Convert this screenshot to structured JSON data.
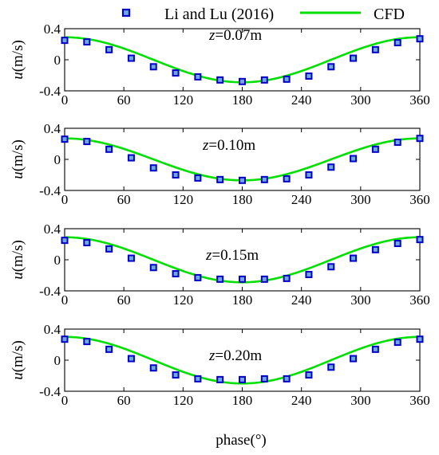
{
  "legend": {
    "markers_label": "Li and Lu (2016)",
    "line_label": "CFD",
    "marker_color": "#0000c8",
    "marker_fill": "#6ea8dc",
    "line_color": "#00e000"
  },
  "xaxis_label": "phase(°)",
  "chart_data": [
    {
      "type": "line",
      "annotation_var": "z",
      "annotation_value": "=0.07m",
      "ylabel_var": "u",
      "ylabel_unit": "(m/s)",
      "xlim": [
        0,
        360
      ],
      "ylim": [
        -0.4,
        0.4
      ],
      "xticks": [
        0,
        60,
        120,
        180,
        240,
        300,
        360
      ],
      "yticks": [
        0.4,
        0,
        -0.4
      ],
      "ytick_labels": [
        "0.4",
        "0",
        "-0.4"
      ],
      "series": [
        {
          "name": "Li and Lu (2016)",
          "style": "markers",
          "x": [
            0,
            22.5,
            45,
            67.5,
            90,
            112.5,
            135,
            157.5,
            180,
            202.5,
            225,
            247.5,
            270,
            292.5,
            315,
            337.5,
            360
          ],
          "y": [
            0.25,
            0.23,
            0.13,
            0.02,
            -0.09,
            -0.17,
            -0.22,
            -0.26,
            -0.28,
            -0.26,
            -0.25,
            -0.21,
            -0.09,
            0.02,
            0.13,
            0.22,
            0.27
          ]
        },
        {
          "name": "CFD",
          "style": "line",
          "amplitude": 0.29
        }
      ]
    },
    {
      "type": "line",
      "annotation_var": "z",
      "annotation_value": "=0.10m",
      "ylabel_var": "u",
      "ylabel_unit": "(m/s)",
      "xlim": [
        0,
        360
      ],
      "ylim": [
        -0.4,
        0.4
      ],
      "xticks": [
        0,
        60,
        120,
        180,
        240,
        300,
        360
      ],
      "yticks": [
        0.4,
        0,
        -0.4
      ],
      "ytick_labels": [
        "0.4",
        "0",
        "-0.4"
      ],
      "series": [
        {
          "name": "Li and Lu (2016)",
          "style": "markers",
          "x": [
            0,
            22.5,
            45,
            67.5,
            90,
            112.5,
            135,
            157.5,
            180,
            202.5,
            225,
            247.5,
            270,
            292.5,
            315,
            337.5,
            360
          ],
          "y": [
            0.26,
            0.23,
            0.13,
            0.02,
            -0.11,
            -0.2,
            -0.24,
            -0.26,
            -0.27,
            -0.26,
            -0.25,
            -0.2,
            -0.1,
            0.01,
            0.13,
            0.22,
            0.27
          ]
        },
        {
          "name": "CFD",
          "style": "line",
          "amplitude": 0.27
        }
      ]
    },
    {
      "type": "line",
      "annotation_var": "z",
      "annotation_value": "=0.15m",
      "ylabel_var": "u",
      "ylabel_unit": "(m/s)",
      "xlim": [
        0,
        360
      ],
      "ylim": [
        -0.4,
        0.4
      ],
      "xticks": [
        0,
        60,
        120,
        180,
        240,
        300,
        360
      ],
      "yticks": [
        0.4,
        0,
        -0.4
      ],
      "ytick_labels": [
        "0.4",
        "0",
        "-0.4"
      ],
      "series": [
        {
          "name": "Li and Lu (2016)",
          "style": "markers",
          "x": [
            0,
            22.5,
            45,
            67.5,
            90,
            112.5,
            135,
            157.5,
            180,
            202.5,
            225,
            247.5,
            270,
            292.5,
            315,
            337.5,
            360
          ],
          "y": [
            0.25,
            0.22,
            0.14,
            0.02,
            -0.1,
            -0.18,
            -0.23,
            -0.25,
            -0.25,
            -0.25,
            -0.24,
            -0.19,
            -0.09,
            0.02,
            0.13,
            0.21,
            0.26
          ]
        },
        {
          "name": "CFD",
          "style": "line",
          "amplitude": 0.29
        }
      ]
    },
    {
      "type": "line",
      "annotation_var": "z",
      "annotation_value": "=0.20m",
      "ylabel_var": "u",
      "ylabel_unit": "(m/s)",
      "xlim": [
        0,
        360
      ],
      "ylim": [
        -0.4,
        0.4
      ],
      "xticks": [
        0,
        60,
        120,
        180,
        240,
        300,
        360
      ],
      "yticks": [
        0.4,
        0,
        -0.4
      ],
      "ytick_labels": [
        "0.4",
        "0",
        "-0.4"
      ],
      "series": [
        {
          "name": "Li and Lu (2016)",
          "style": "markers",
          "x": [
            0,
            22.5,
            45,
            67.5,
            90,
            112.5,
            135,
            157.5,
            180,
            202.5,
            225,
            247.5,
            270,
            292.5,
            315,
            337.5,
            360
          ],
          "y": [
            0.27,
            0.24,
            0.14,
            0.02,
            -0.1,
            -0.19,
            -0.24,
            -0.25,
            -0.25,
            -0.24,
            -0.24,
            -0.19,
            -0.09,
            0.02,
            0.14,
            0.23,
            0.27
          ]
        },
        {
          "name": "CFD",
          "style": "line",
          "amplitude": 0.3
        }
      ]
    }
  ]
}
